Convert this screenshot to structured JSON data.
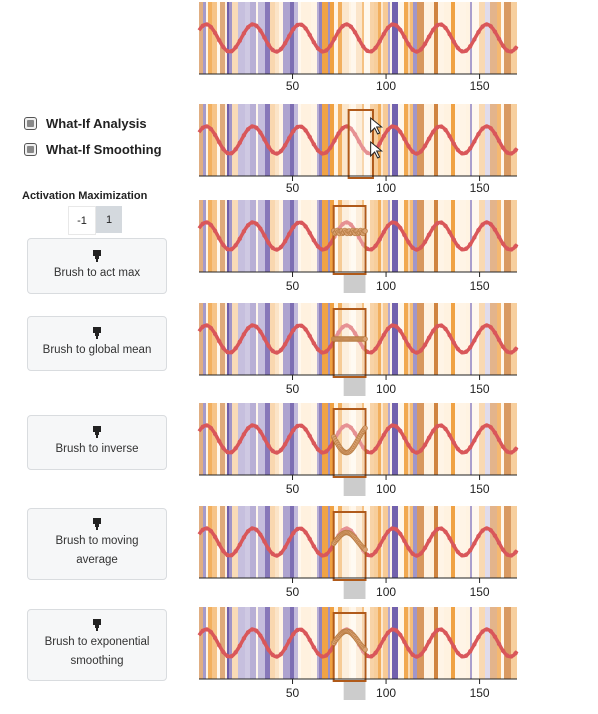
{
  "controls": {
    "what_if_analysis_label": "What-If Analysis",
    "what_if_smoothing_label": "What-If Smoothing",
    "activation_max_title": "Activation Maximization",
    "activation_options": [
      "-1",
      "1"
    ],
    "activation_selected": "1"
  },
  "buttons": [
    {
      "icon": "marker-icon",
      "lines": [
        "Brush to act max"
      ]
    },
    {
      "icon": "marker-icon",
      "lines": [
        "Brush to global mean"
      ]
    },
    {
      "icon": "marker-icon",
      "lines": [
        "Brush to inverse"
      ]
    },
    {
      "icon": "marker-icon",
      "lines": [
        "Brush to moving",
        "average"
      ]
    },
    {
      "icon": "marker-icon",
      "lines": [
        "Brush to exponential",
        "smoothing"
      ]
    }
  ],
  "axis_ticks": [
    "50",
    "100",
    "150"
  ],
  "colors": {
    "series": "#d9575a",
    "brush": "#b05a1a",
    "modified": "#d9a070",
    "orange": "#f0a040",
    "purple": "#6a58a8",
    "selection_bar": "#cccccc"
  },
  "chart_data": {
    "type": "line",
    "x_range": [
      0,
      170
    ],
    "x_ticks": [
      50,
      100,
      150
    ],
    "series_description": "sinusoidal time series with period about 25",
    "panels": [
      {
        "mode": "original"
      },
      {
        "mode": "what-if-drag",
        "brush_x": [
          80,
          93
        ]
      },
      {
        "mode": "act-max",
        "brush_x": [
          72,
          89
        ]
      },
      {
        "mode": "global-mean",
        "brush_x": [
          72,
          89
        ]
      },
      {
        "mode": "inverse",
        "brush_x": [
          72,
          89
        ]
      },
      {
        "mode": "moving-average",
        "brush_x": [
          72,
          89
        ]
      },
      {
        "mode": "exponential-smoothing",
        "brush_x": [
          72,
          89
        ]
      }
    ]
  }
}
